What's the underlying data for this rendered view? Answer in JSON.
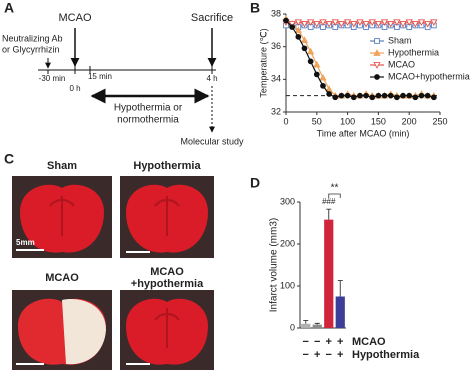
{
  "panel_labels": {
    "a": "A",
    "b": "B",
    "c": "C",
    "d": "D"
  },
  "timeline": {
    "pretreat": [
      "Neutralizing Ab",
      "or Glycyrrhizin"
    ],
    "start": "MCAO",
    "end": "Sacrifice",
    "times": [
      "-30 min",
      "0 h",
      "15 min",
      "4 h"
    ],
    "treatment": [
      "Hypothermia or",
      "normothermia"
    ],
    "outcome": "Molecular study"
  },
  "brain_images": {
    "labels": [
      [
        "Sham"
      ],
      [
        "Hypothermia"
      ],
      [
        "MCAO"
      ],
      [
        "MCAO",
        "+hypothermia"
      ]
    ],
    "scale_bar": "5mm"
  },
  "chart_data": [
    {
      "type": "line",
      "xlabel": "Time after MCAO (min)",
      "ylabel": "Temperature (℃)",
      "x": [
        0,
        10,
        20,
        30,
        40,
        50,
        60,
        70,
        80,
        90,
        100,
        110,
        120,
        130,
        140,
        150,
        160,
        170,
        180,
        190,
        200,
        210,
        220,
        230,
        240
      ],
      "series": [
        {
          "name": "Sham",
          "color": "#5b7fc0",
          "marker": "square-open",
          "values": [
            37.3,
            37.3,
            37.2,
            37.3,
            37.2,
            37.3,
            37.2,
            37.3,
            37.2,
            37.3,
            37.3,
            37.2,
            37.3,
            37.2,
            37.3,
            37.3,
            37.2,
            37.3,
            37.2,
            37.3,
            37.2,
            37.3,
            37.3,
            37.2,
            37.3
          ]
        },
        {
          "name": "Hypothermia",
          "color": "#f0a35a",
          "marker": "triangle-up",
          "values": [
            37.7,
            37.4,
            37.0,
            36.4,
            35.7,
            34.9,
            34.1,
            33.4,
            33.0,
            33.0,
            33.1,
            33.0,
            33.0,
            33.1,
            33.0,
            33.0,
            33.0,
            33.1,
            33.0,
            33.0,
            33.0,
            33.0,
            33.1,
            33.0,
            33.0
          ]
        },
        {
          "name": "MCAO",
          "color": "#e5534b",
          "marker": "triangle-down-open",
          "values": [
            37.5,
            37.4,
            37.5,
            37.4,
            37.5,
            37.4,
            37.5,
            37.4,
            37.5,
            37.4,
            37.5,
            37.4,
            37.5,
            37.4,
            37.5,
            37.4,
            37.5,
            37.4,
            37.5,
            37.4,
            37.5,
            37.4,
            37.5,
            37.4,
            37.5
          ]
        },
        {
          "name": "MCAO+hypothermia",
          "color": "#111111",
          "marker": "circle",
          "values": [
            37.6,
            37.2,
            36.6,
            35.9,
            35.1,
            34.3,
            33.6,
            33.1,
            32.9,
            33.0,
            33.0,
            32.9,
            33.0,
            33.0,
            32.9,
            33.0,
            33.0,
            33.0,
            32.9,
            33.0,
            33.0,
            32.9,
            33.0,
            33.0,
            32.9
          ]
        }
      ],
      "hline": 33,
      "xlim": [
        0,
        250
      ],
      "xticks": [
        0,
        50,
        100,
        150,
        200,
        250
      ],
      "ylim": [
        32,
        38
      ],
      "yticks": [
        32,
        34,
        36,
        38
      ],
      "legend": "center right"
    },
    {
      "type": "bar",
      "ylabel": "Infarct volume (mm3)",
      "values": [
        10,
        8,
        258,
        75
      ],
      "errors": [
        8,
        3,
        25,
        38
      ],
      "colors": [
        "#b0b0b0",
        "#8a8a8a",
        "#d0253a",
        "#3b3f98"
      ],
      "ylim": [
        0,
        300
      ],
      "yticks": [
        0,
        100,
        200,
        300
      ],
      "annotations": [
        "###",
        "**"
      ],
      "conditions": [
        {
          "name": "MCAO",
          "signs": [
            "−",
            "−",
            "+",
            "+"
          ]
        },
        {
          "name": "Hypothermia",
          "signs": [
            "−",
            "+",
            "−",
            "+"
          ]
        }
      ]
    }
  ]
}
